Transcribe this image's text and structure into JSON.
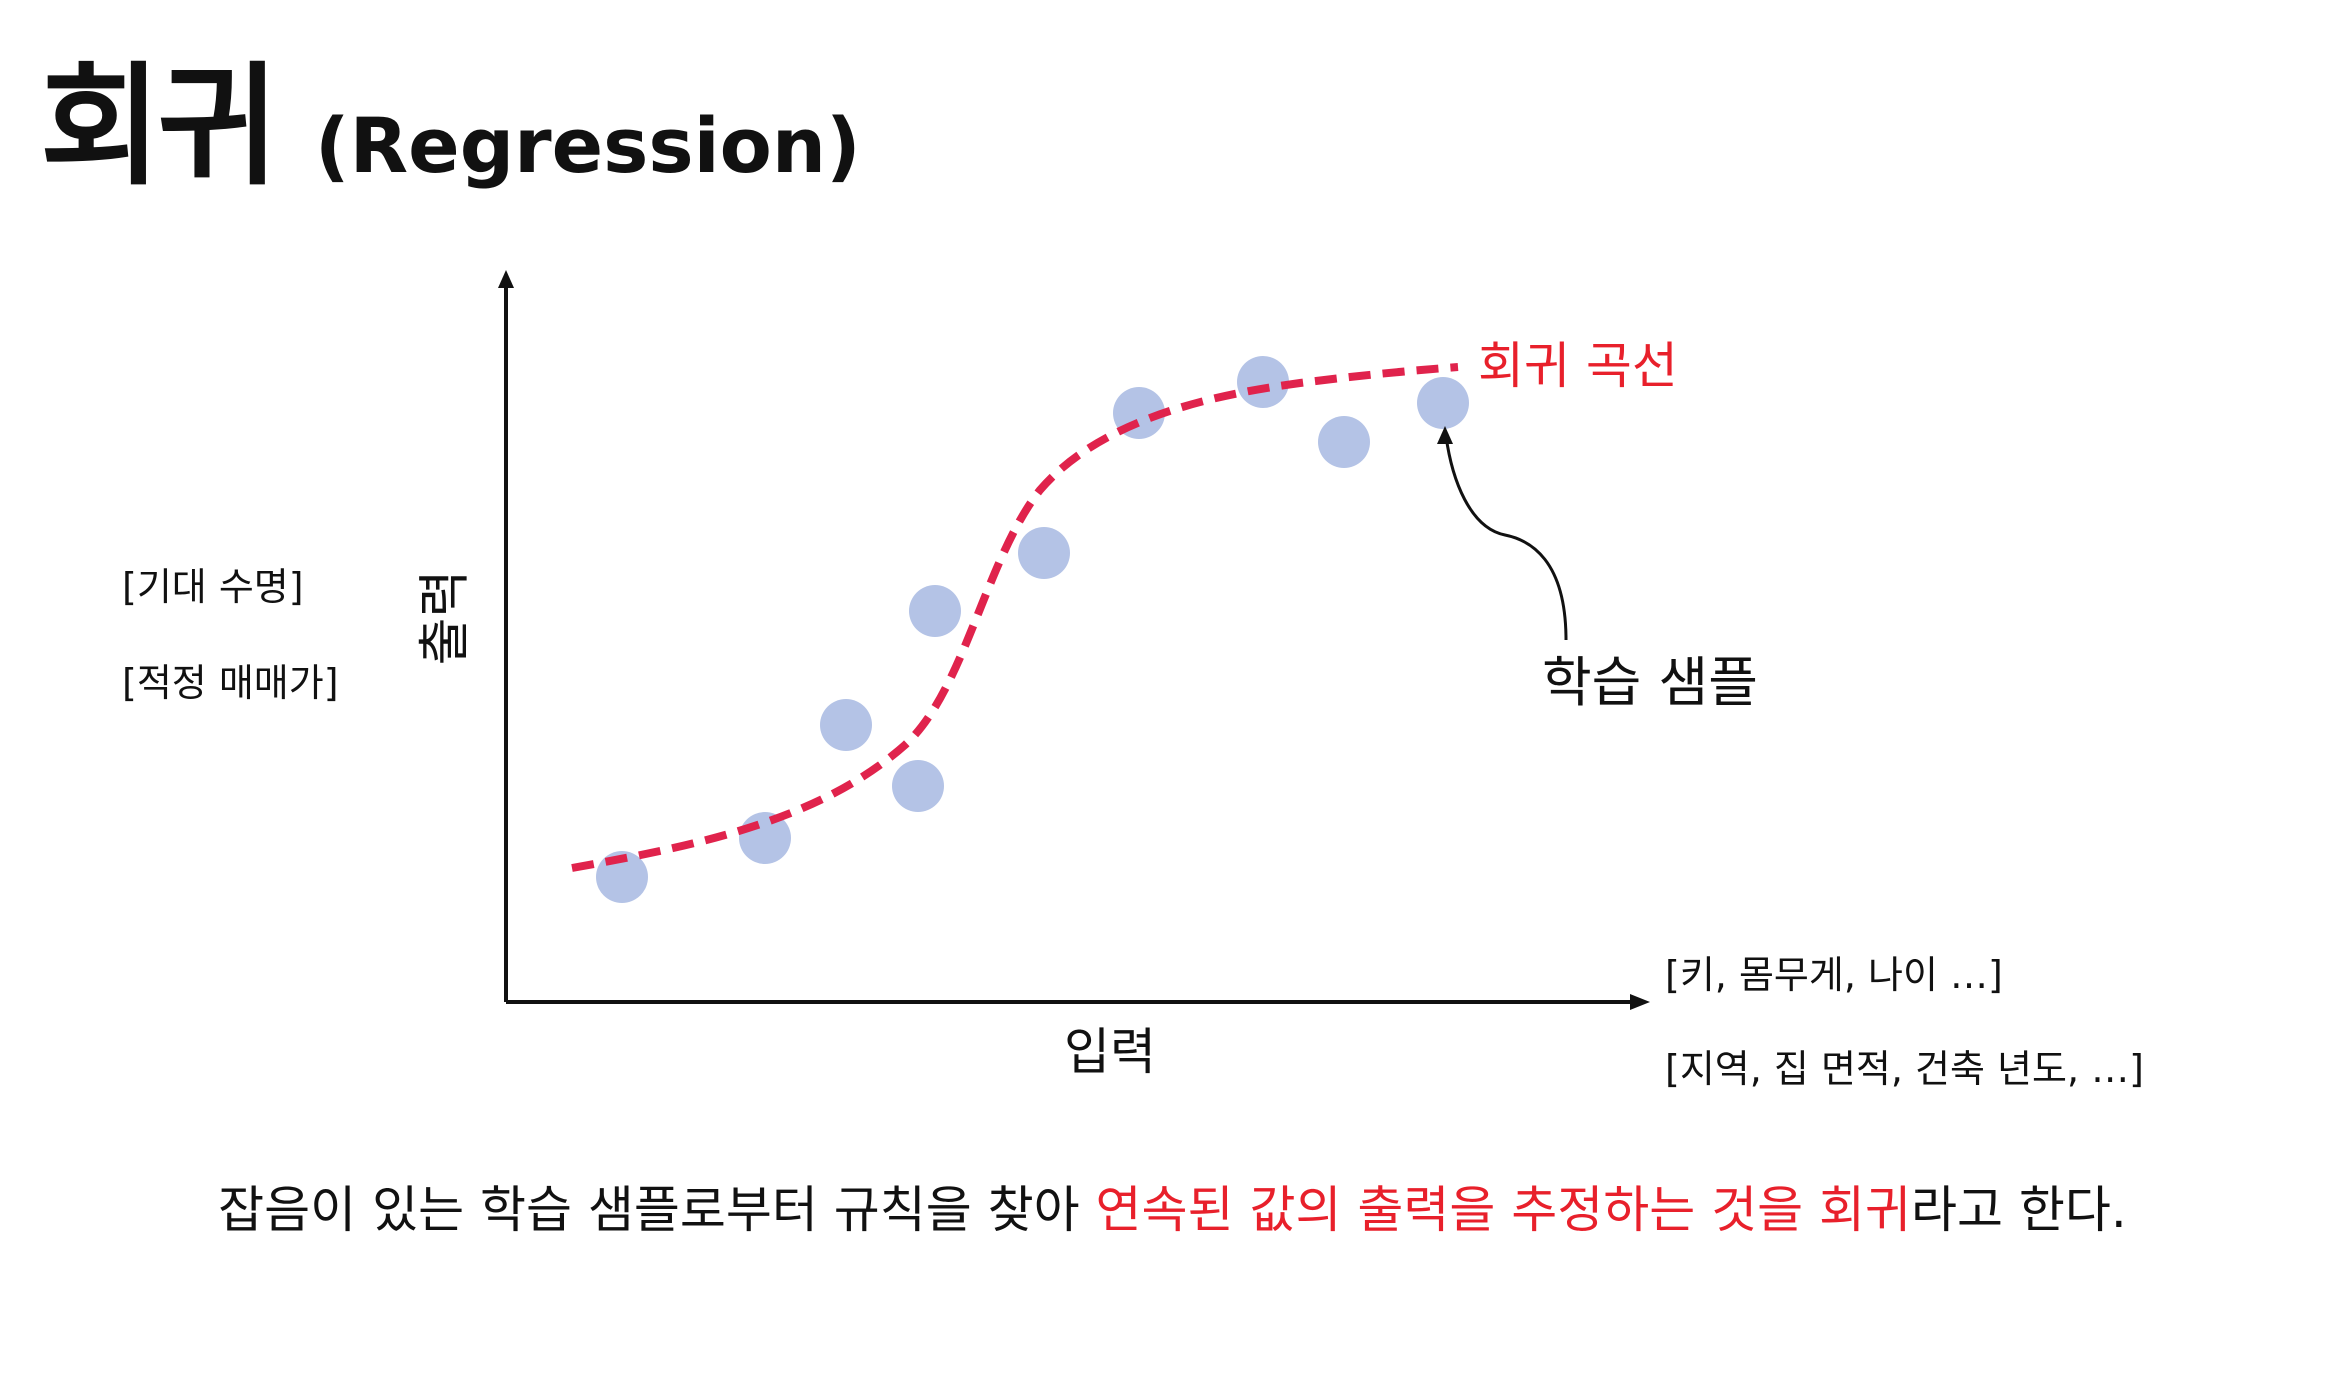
{
  "title": {
    "korean": "회귀",
    "english": "(Regression)"
  },
  "y_axis": {
    "label": "출력",
    "examples": [
      "[기대 수명]",
      "[적정 매매가]"
    ]
  },
  "x_axis": {
    "label": "입력",
    "examples": [
      "[키, 몸무게, 나이 …]",
      "[지역, 집 면적, 건축 년도, …]"
    ]
  },
  "curve_label": "회귀 곡선",
  "sample_label": "학습 샘플",
  "caption": {
    "prefix": "잡음이 있는 학습 샘플로부터 규칙을 찾아 ",
    "highlight": "연속된 값의 출력을 추정하는 것을 회귀",
    "suffix": "라고 한다."
  },
  "colors": {
    "curve": "#e0234c",
    "sample": "#b4c3e6",
    "highlight": "#e8202b"
  }
}
